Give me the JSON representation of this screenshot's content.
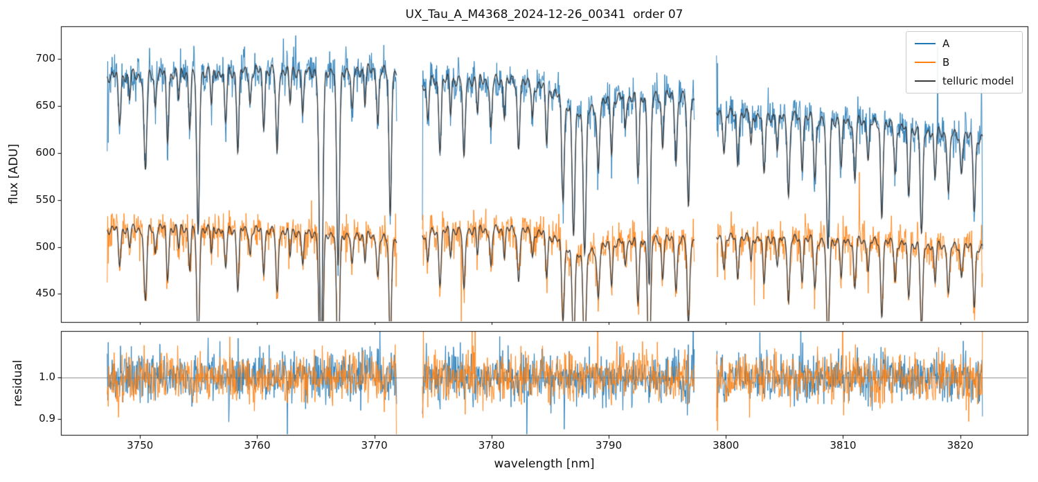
{
  "chart_data": {
    "type": "line",
    "title": "UX_Tau_A_M4368_2024-12-26_00341  order 07",
    "xlabel": "wavelength [nm]",
    "ylabel_top": "flux [ADU]",
    "ylabel_bottom": "residual",
    "xlim": [
      3743.25,
      3825.75
    ],
    "xticks": [
      3750,
      3760,
      3770,
      3780,
      3790,
      3800,
      3810,
      3820
    ],
    "top_panel": {
      "ylim": [
        420,
        735
      ],
      "yticks": [
        450,
        500,
        550,
        600,
        650,
        700
      ]
    },
    "bottom_panel": {
      "ylim": [
        0.862,
        1.112
      ],
      "yticks": [
        0.9,
        1.0
      ],
      "reference_line": 1.0
    },
    "legend": [
      {
        "label": "A",
        "color": "#1f77b4"
      },
      {
        "label": "B",
        "color": "#ff7f0e"
      },
      {
        "label": "telluric model",
        "color": "#3a3a3a"
      }
    ],
    "segments": [
      [
        3747.2,
        3771.9
      ],
      [
        3774.1,
        3797.3
      ],
      [
        3799.2,
        3821.9
      ]
    ],
    "series": [
      {
        "name": "A",
        "color": "#1f77b4",
        "noise_sigma": 10,
        "continuum": [
          [
            3747,
            689
          ],
          [
            3752,
            692
          ],
          [
            3758,
            694
          ],
          [
            3764,
            695
          ],
          [
            3769,
            696
          ],
          [
            3772,
            692
          ],
          [
            3774,
            681
          ],
          [
            3777,
            686
          ],
          [
            3781,
            684
          ],
          [
            3785,
            678
          ],
          [
            3788,
            670
          ],
          [
            3791,
            667
          ],
          [
            3794,
            668
          ],
          [
            3797,
            666
          ],
          [
            3799,
            649
          ],
          [
            3803,
            647
          ],
          [
            3807,
            644
          ],
          [
            3811,
            641
          ],
          [
            3815,
            634
          ],
          [
            3818,
            629
          ],
          [
            3822,
            621
          ]
        ]
      },
      {
        "name": "B",
        "color": "#ff7f0e",
        "noise_sigma": 10,
        "continuum": [
          [
            3747,
            524
          ],
          [
            3752,
            526
          ],
          [
            3758,
            524
          ],
          [
            3764,
            521
          ],
          [
            3769,
            518
          ],
          [
            3772,
            511
          ],
          [
            3774,
            519
          ],
          [
            3777,
            524
          ],
          [
            3781,
            524
          ],
          [
            3785,
            520
          ],
          [
            3788,
            513
          ],
          [
            3791,
            511
          ],
          [
            3794,
            514
          ],
          [
            3797,
            512
          ],
          [
            3799,
            515
          ],
          [
            3803,
            515
          ],
          [
            3807,
            513
          ],
          [
            3811,
            512
          ],
          [
            3815,
            509
          ],
          [
            3818,
            507
          ],
          [
            3822,
            504
          ]
        ]
      }
    ],
    "telluric_model_color": "#3a3a3a",
    "telluric_lines": [
      [
        3748.25,
        0.07,
        0.1
      ],
      [
        3749.1,
        0.04,
        0.08
      ],
      [
        3750.45,
        0.15,
        0.12
      ],
      [
        3751.3,
        0.05,
        0.08
      ],
      [
        3752.35,
        0.1,
        0.1
      ],
      [
        3753.3,
        0.04,
        0.08
      ],
      [
        3754.25,
        0.08,
        0.09
      ],
      [
        3754.95,
        0.25,
        0.11
      ],
      [
        3756.1,
        0.05,
        0.08
      ],
      [
        3757.3,
        0.08,
        0.1
      ],
      [
        3758.35,
        0.12,
        0.1
      ],
      [
        3759.4,
        0.05,
        0.08
      ],
      [
        3760.55,
        0.08,
        0.09
      ],
      [
        3761.7,
        0.13,
        0.1
      ],
      [
        3762.8,
        0.05,
        0.08
      ],
      [
        3763.9,
        0.07,
        0.09
      ],
      [
        3765.45,
        0.45,
        0.14
      ],
      [
        3766.9,
        0.3,
        0.12
      ],
      [
        3768.1,
        0.07,
        0.09
      ],
      [
        3769.2,
        0.05,
        0.08
      ],
      [
        3770.3,
        0.08,
        0.09
      ],
      [
        3771.35,
        0.22,
        0.1
      ],
      [
        3774.55,
        0.06,
        0.09
      ],
      [
        3775.6,
        0.1,
        0.1
      ],
      [
        3776.5,
        0.05,
        0.08
      ],
      [
        3777.65,
        0.13,
        0.1
      ],
      [
        3778.8,
        0.05,
        0.08
      ],
      [
        3779.95,
        0.08,
        0.09
      ],
      [
        3781.1,
        0.05,
        0.08
      ],
      [
        3782.3,
        0.1,
        0.1
      ],
      [
        3783.5,
        0.05,
        0.08
      ],
      [
        3784.7,
        0.08,
        0.09
      ],
      [
        3786.1,
        0.15,
        0.11
      ],
      [
        3787.0,
        0.2,
        0.12
      ],
      [
        3787.95,
        0.22,
        0.12
      ],
      [
        3789.1,
        0.1,
        0.1
      ],
      [
        3790.25,
        0.08,
        0.09
      ],
      [
        3791.4,
        0.05,
        0.08
      ],
      [
        3792.5,
        0.13,
        0.1
      ],
      [
        3793.45,
        0.3,
        0.12
      ],
      [
        3794.6,
        0.08,
        0.09
      ],
      [
        3795.75,
        0.1,
        0.1
      ],
      [
        3796.8,
        0.18,
        0.1
      ],
      [
        3787.6,
        0.03,
        1.5
      ],
      [
        3799.85,
        0.06,
        0.09
      ],
      [
        3801.0,
        0.08,
        0.09
      ],
      [
        3802.15,
        0.05,
        0.08
      ],
      [
        3803.25,
        0.1,
        0.1
      ],
      [
        3804.4,
        0.06,
        0.09
      ],
      [
        3805.35,
        0.13,
        0.1
      ],
      [
        3806.5,
        0.08,
        0.09
      ],
      [
        3807.6,
        0.1,
        0.1
      ],
      [
        3808.7,
        0.22,
        0.12
      ],
      [
        3809.85,
        0.08,
        0.09
      ],
      [
        3811.0,
        0.1,
        0.1
      ],
      [
        3812.15,
        0.06,
        0.09
      ],
      [
        3813.3,
        0.15,
        0.1
      ],
      [
        3814.45,
        0.08,
        0.09
      ],
      [
        3815.6,
        0.11,
        0.1
      ],
      [
        3816.7,
        0.18,
        0.11
      ],
      [
        3817.85,
        0.08,
        0.09
      ],
      [
        3819.0,
        0.1,
        0.1
      ],
      [
        3820.1,
        0.06,
        0.09
      ],
      [
        3821.2,
        0.12,
        0.1
      ]
    ],
    "ripple_depth": 0.012,
    "residual_sigma": 0.03,
    "sample_step_nm": 0.042,
    "seed": 11
  }
}
